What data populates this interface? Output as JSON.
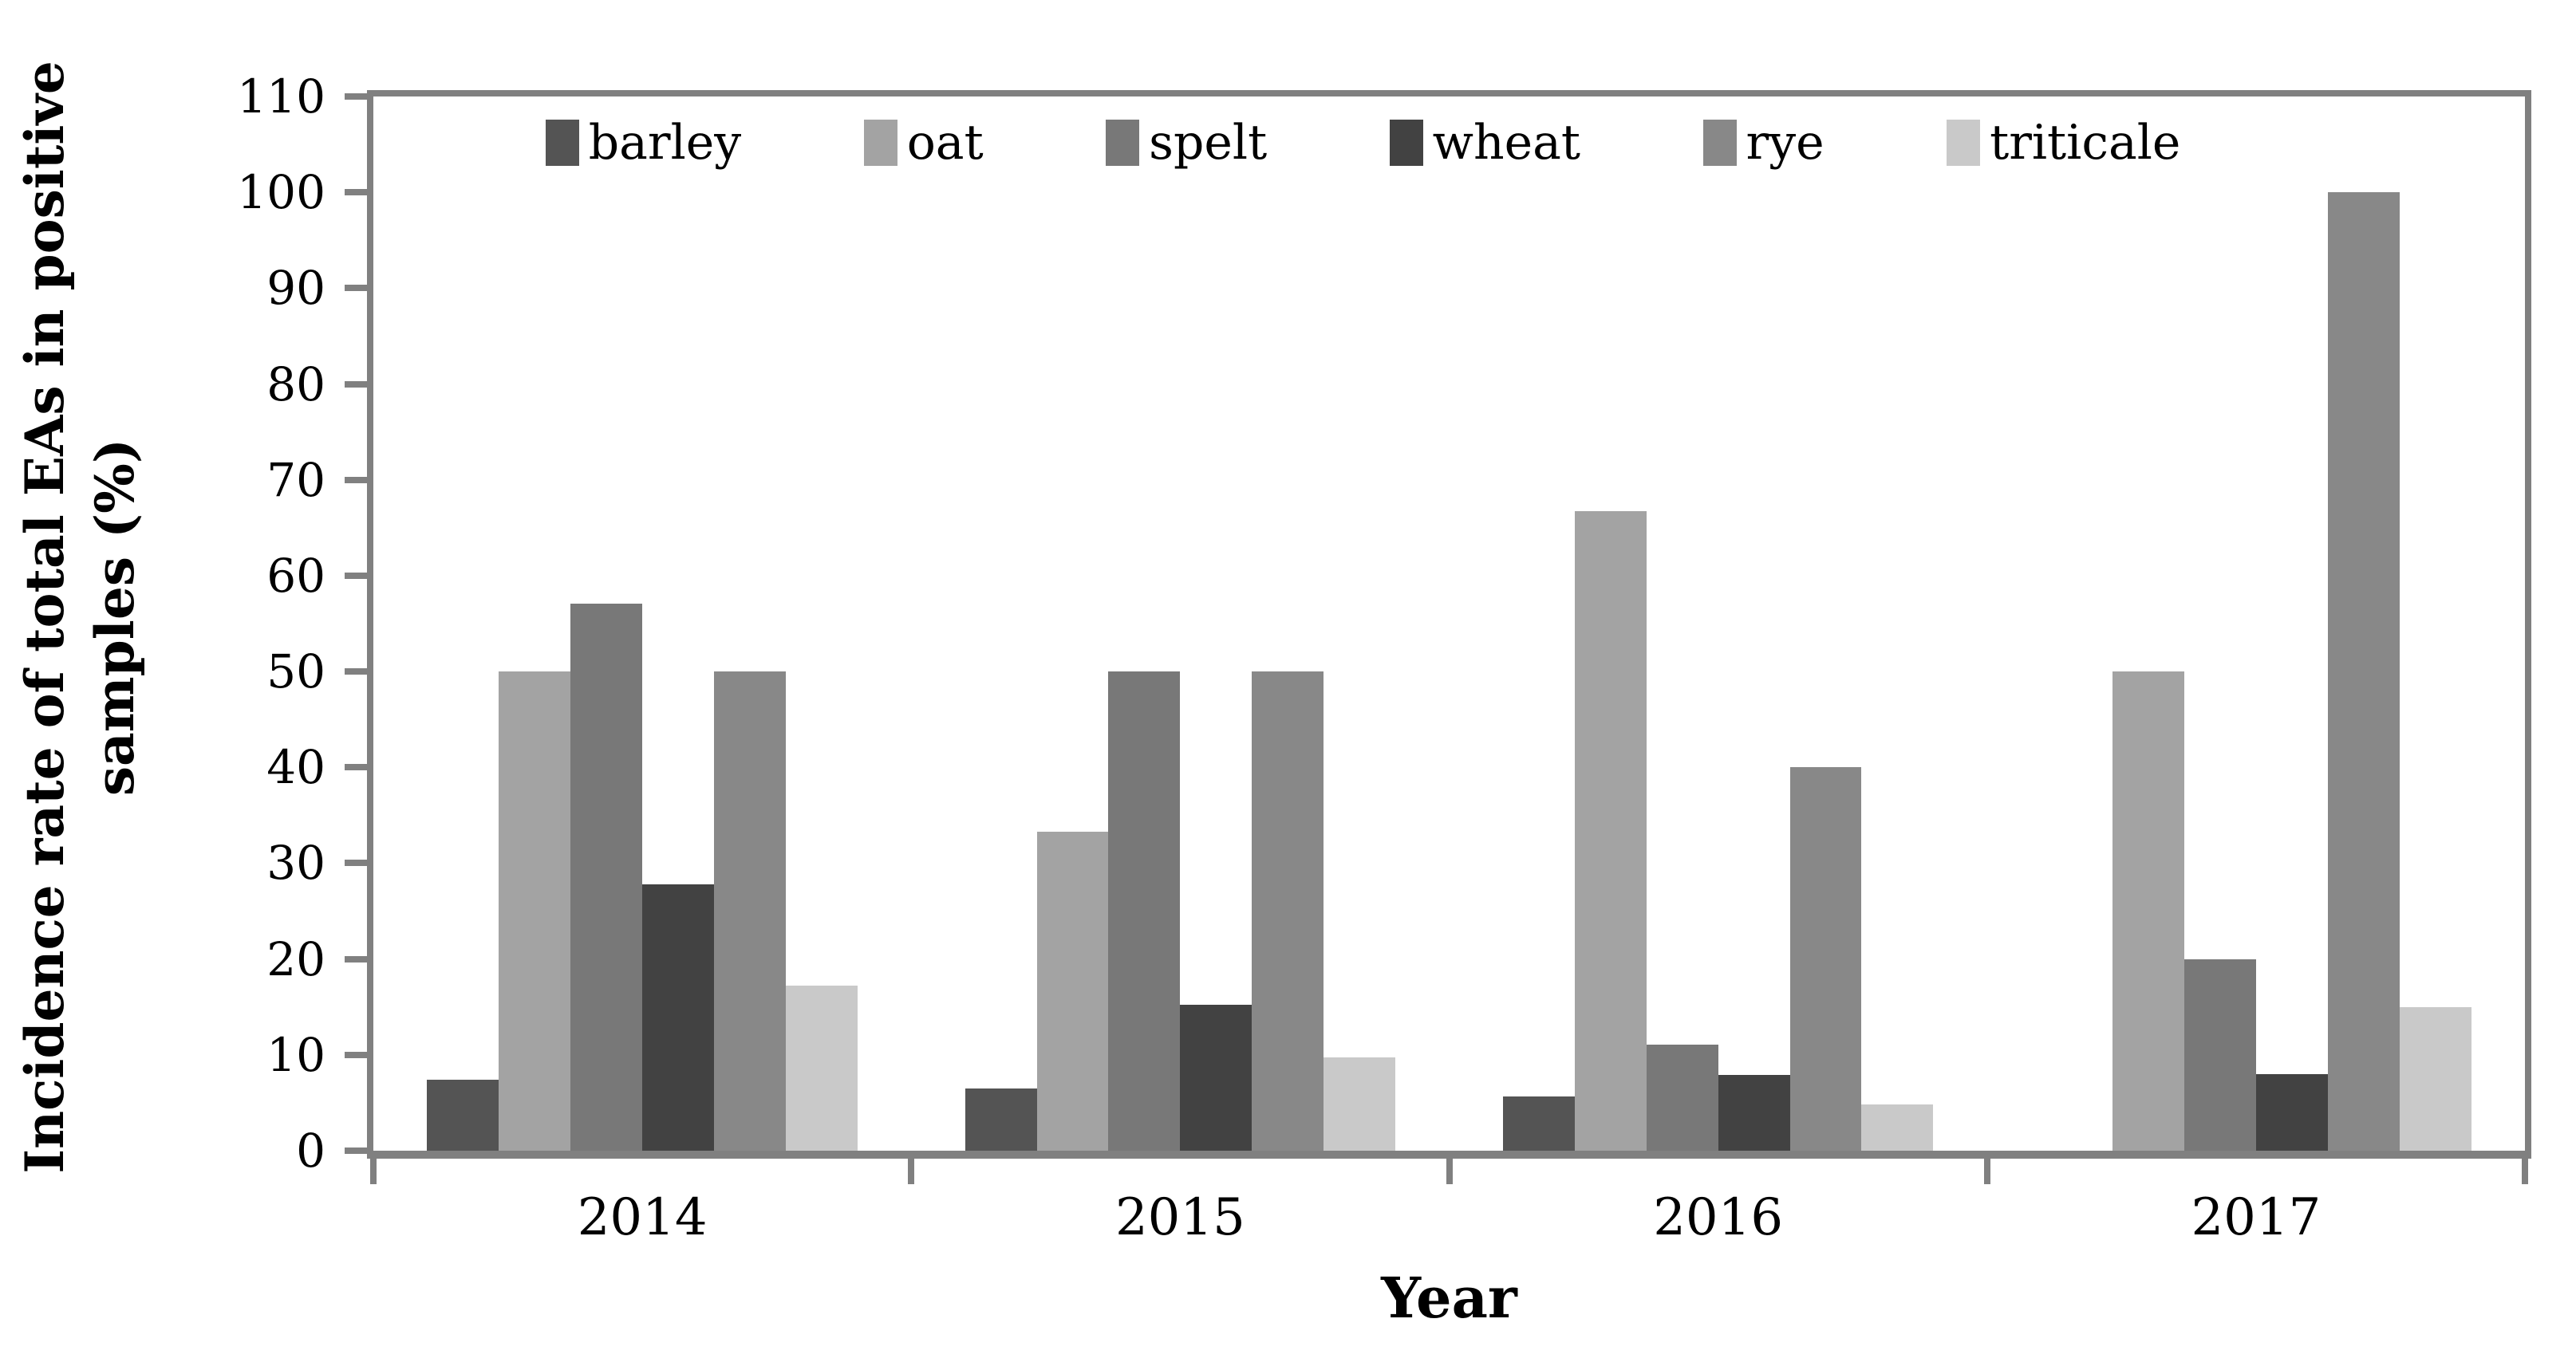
{
  "chart_data": {
    "type": "bar",
    "title": "",
    "xlabel": "Year",
    "ylabel_line1": "Incidence rate of total EAs in positive",
    "ylabel_line2": "samples (%)",
    "categories": [
      "2014",
      "2015",
      "2016",
      "2017"
    ],
    "series": [
      {
        "name": "barley",
        "color": "#545454",
        "values": [
          7.4,
          6.5,
          5.7,
          0
        ]
      },
      {
        "name": "oat",
        "color": "#a3a3a3",
        "values": [
          50,
          33.3,
          66.7,
          50
        ]
      },
      {
        "name": "spelt",
        "color": "#787878",
        "values": [
          57.1,
          50,
          11.1,
          20
        ]
      },
      {
        "name": "wheat",
        "color": "#424242",
        "values": [
          27.8,
          15.2,
          7.9,
          8
        ]
      },
      {
        "name": "rye",
        "color": "#888888",
        "values": [
          50,
          50,
          40,
          100
        ]
      },
      {
        "name": "triticale",
        "color": "#c9c9c9",
        "values": [
          17.2,
          9.7,
          4.8,
          15
        ]
      }
    ],
    "ylim": [
      0,
      110
    ],
    "ytick_step": 10,
    "yticks": [
      0,
      10,
      20,
      30,
      40,
      50,
      60,
      70,
      80,
      90,
      100,
      110
    ],
    "legend_position": "top-inside",
    "grid": false,
    "axis_color": "#808080",
    "bars_per_group": 6,
    "group_gap_ratio": 1.5
  }
}
